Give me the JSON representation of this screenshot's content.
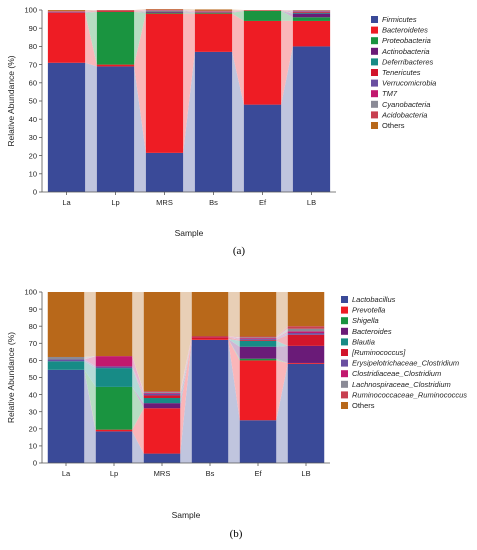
{
  "chart_data": [
    {
      "type": "bar",
      "stacked": true,
      "panel_label": "(a)",
      "xlabel": "Sample",
      "ylabel": "Relative Abundance (%)",
      "ylim": [
        0,
        100
      ],
      "yticks": [
        0,
        10,
        20,
        30,
        40,
        50,
        60,
        70,
        80,
        90,
        100
      ],
      "categories": [
        "La",
        "Lp",
        "MRS",
        "Bs",
        "Ef",
        "LB"
      ],
      "legend_position": "right",
      "series": [
        {
          "name": "Firmicutes",
          "color": "#3a4a98",
          "values": [
            71,
            69,
            21.5,
            77,
            48,
            80
          ]
        },
        {
          "name": "Bacteroidetes",
          "color": "#ee1c24",
          "values": [
            27.5,
            1,
            76.5,
            21,
            46,
            14
          ]
        },
        {
          "name": "Proteobacteria",
          "color": "#1a9440",
          "values": [
            0,
            29,
            0.5,
            0.5,
            5.5,
            2
          ]
        },
        {
          "name": "Actinobacteria",
          "color": "#6a1b78",
          "values": [
            0.3,
            0,
            0.5,
            0.3,
            0,
            2
          ]
        },
        {
          "name": "Deferribacteres",
          "color": "#178b86",
          "values": [
            0,
            0,
            0.3,
            0,
            0,
            0.5
          ]
        },
        {
          "name": "Tenericutes",
          "color": "#d2152b",
          "values": [
            0.3,
            0.7,
            0.3,
            0.3,
            0.2,
            0.5
          ]
        },
        {
          "name": "Verrucomicrobia",
          "color": "#6a4fa0",
          "values": [
            0,
            0,
            0,
            0,
            0,
            0.3
          ]
        },
        {
          "name": "TM7",
          "color": "#c2186e",
          "values": [
            0,
            0,
            0.2,
            0.2,
            0,
            0.2
          ]
        },
        {
          "name": "Cyanobacteria",
          "color": "#8a8a96",
          "values": [
            0.2,
            0.1,
            0.2,
            0.2,
            0.1,
            0.2
          ]
        },
        {
          "name": "Acidobacteria",
          "color": "#c84050",
          "values": [
            0.2,
            0.1,
            0.2,
            0.2,
            0.1,
            0.2
          ]
        },
        {
          "name": "Others",
          "color": "#b8681a",
          "values": [
            0.5,
            0.1,
            0.3,
            0.6,
            0.1,
            0.1
          ]
        }
      ]
    },
    {
      "type": "bar",
      "stacked": true,
      "panel_label": "(b)",
      "xlabel": "Sample",
      "ylabel": "Relative Abundance (%)",
      "ylim": [
        0,
        100
      ],
      "yticks": [
        0,
        10,
        20,
        30,
        40,
        50,
        60,
        70,
        80,
        90,
        100
      ],
      "categories": [
        "La",
        "Lp",
        "MRS",
        "Bs",
        "Ef",
        "LB"
      ],
      "legend_position": "right",
      "series": [
        {
          "name": "Lactobacillus",
          "color": "#3a4a98",
          "values": [
            54.5,
            18.5,
            5.5,
            72,
            25,
            58
          ]
        },
        {
          "name": "Prevotella",
          "color": "#ee1c24",
          "values": [
            0,
            1,
            26.5,
            0.5,
            35,
            0.5
          ]
        },
        {
          "name": "Shigella",
          "color": "#1a9440",
          "values": [
            0,
            25,
            0,
            0,
            1,
            0
          ]
        },
        {
          "name": "Bacteroides",
          "color": "#6a1b78",
          "values": [
            0,
            0,
            3,
            0,
            7,
            10
          ]
        },
        {
          "name": "Blautia",
          "color": "#178b86",
          "values": [
            5,
            11,
            3,
            0,
            3.5,
            0
          ]
        },
        {
          "name": "[Ruminococcus]",
          "color": "#d2152b",
          "values": [
            0,
            0,
            1.5,
            1,
            0.5,
            6.5
          ]
        },
        {
          "name": "Erysipelotrichaceae_Clostridium",
          "color": "#6a4fa0",
          "values": [
            1,
            1,
            1,
            0,
            0.5,
            1
          ]
        },
        {
          "name": "Clostridiaceae_Clostridium",
          "color": "#c2186e",
          "values": [
            0,
            6,
            0.5,
            0.5,
            0.5,
            1
          ]
        },
        {
          "name": "Lachnospiraceae_Clostridium",
          "color": "#8a8a96",
          "values": [
            1.5,
            0,
            0.5,
            0,
            0.5,
            1.5
          ]
        },
        {
          "name": "Ruminococcaceae_Ruminococcus",
          "color": "#c84050",
          "values": [
            0,
            0,
            0.5,
            0,
            0.5,
            1.5
          ]
        },
        {
          "name": "Others",
          "color": "#b8681a",
          "values": [
            38,
            37.5,
            58,
            26,
            26,
            20
          ]
        }
      ]
    }
  ]
}
